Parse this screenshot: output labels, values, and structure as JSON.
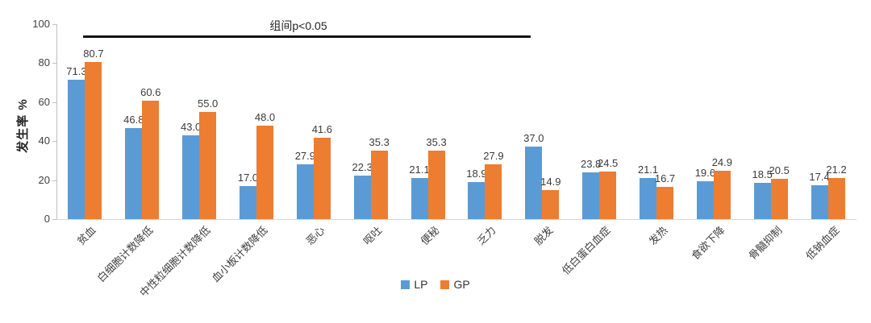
{
  "chart_data": {
    "type": "bar",
    "title": "",
    "xlabel": "",
    "ylabel": "发生率 %",
    "ylim": [
      0,
      100
    ],
    "yticks": [
      0,
      20,
      40,
      60,
      80,
      100
    ],
    "grid": false,
    "legend_position": "bottom",
    "annotation": "组间p<0.05",
    "annotation_note": "significance bar spanning first nine categories",
    "categories": [
      "贫血",
      "白细胞计数降低",
      "中性粒细胞计数降低",
      "血小板计数降低",
      "恶心",
      "呕吐",
      "便秘",
      "乏力",
      "脱发",
      "低白蛋白血症",
      "发热",
      "食欲下降",
      "骨髓抑制",
      "低钠血症"
    ],
    "series": [
      {
        "name": "LP",
        "color": "#5B9BD5",
        "values": [
          71.3,
          46.8,
          43.0,
          17.0,
          27.9,
          22.3,
          21.1,
          18.9,
          37.0,
          23.8,
          21.1,
          19.6,
          18.5,
          17.4
        ]
      },
      {
        "name": "GP",
        "color": "#ED7D31",
        "values": [
          80.7,
          60.6,
          55.0,
          48.0,
          41.6,
          35.3,
          35.3,
          27.9,
          14.9,
          24.5,
          16.7,
          24.9,
          20.5,
          21.2
        ]
      }
    ],
    "colors": {
      "lp_blue": "#5B9BD5",
      "gp_orange": "#ED7D31",
      "annotation_line": "#111111",
      "axis_line": "#bfbfbf",
      "baseline": "#d6d6d6",
      "label_text": "#3b3b3b"
    }
  }
}
